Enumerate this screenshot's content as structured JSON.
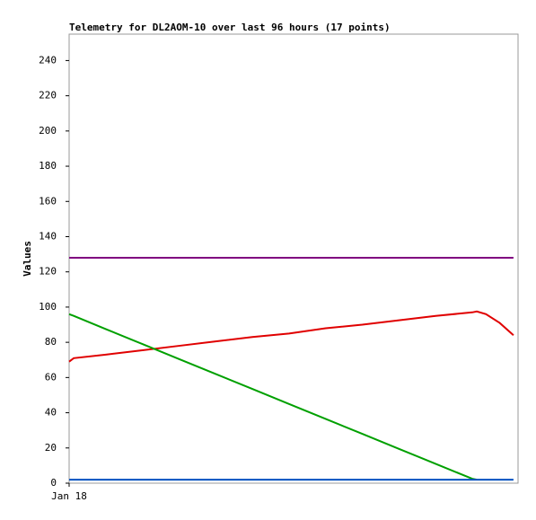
{
  "chart_data": {
    "type": "line",
    "title": "Telemetry for DL2AOM-10 over last 96 hours (17 points)",
    "y_label": "Values",
    "x": [
      0,
      1,
      8,
      16,
      24,
      32,
      40,
      48,
      56,
      64,
      72,
      80,
      88,
      89,
      91,
      94,
      97
    ],
    "xlim": [
      0,
      98
    ],
    "xticks": [
      {
        "value": 0,
        "label": "Jan 18"
      }
    ],
    "ylim": [
      0,
      255
    ],
    "yticks": [
      0,
      20,
      40,
      60,
      80,
      100,
      120,
      140,
      160,
      180,
      200,
      220,
      240
    ],
    "series": [
      {
        "color": "#800080",
        "values": [
          128,
          128,
          128,
          128,
          128,
          128,
          128,
          128,
          128,
          128,
          128,
          128,
          128,
          128,
          128,
          128,
          128
        ]
      },
      {
        "color": "#e00000",
        "values": [
          69,
          71,
          73,
          75.5,
          78,
          80.5,
          83,
          85,
          88,
          90,
          92.5,
          95,
          97,
          97.5,
          96,
          91,
          84
        ]
      },
      {
        "color": "#00a000",
        "values": [
          96,
          95,
          87.5,
          79,
          70.5,
          62,
          53.5,
          45,
          36.5,
          28,
          19.5,
          11,
          2.5,
          2,
          null,
          null,
          null
        ]
      },
      {
        "color": "#0050c0",
        "values": [
          2,
          2,
          2,
          2,
          2,
          2,
          2,
          2,
          2,
          2,
          2,
          2,
          2,
          2,
          2,
          2,
          2
        ]
      }
    ]
  }
}
